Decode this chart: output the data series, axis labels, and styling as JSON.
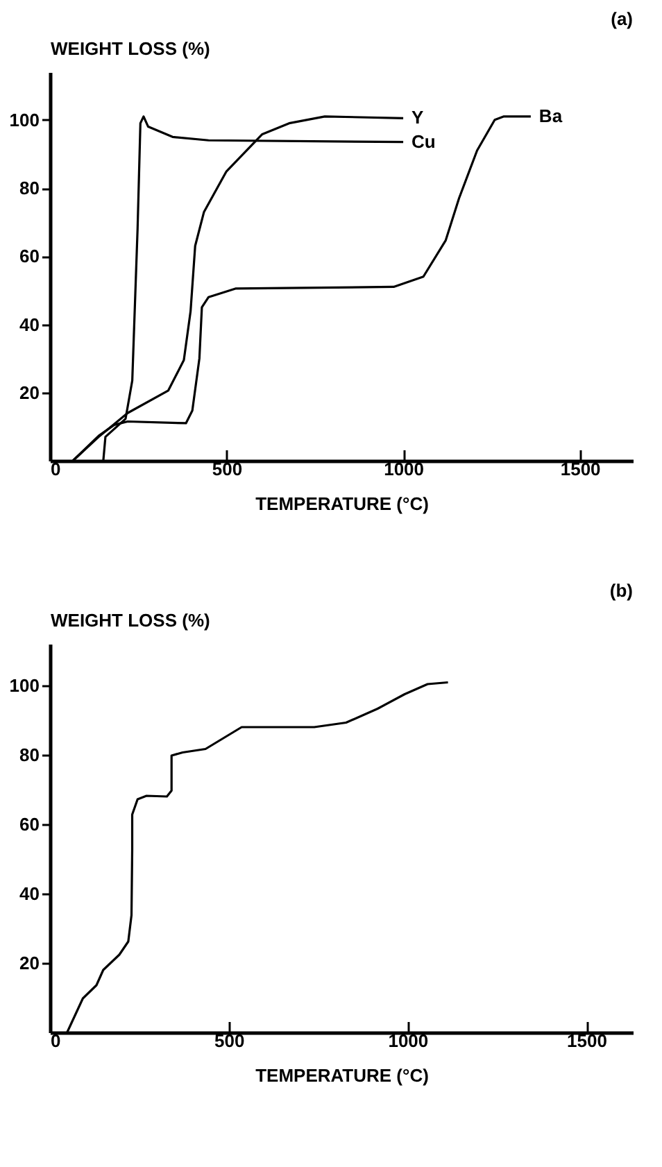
{
  "chart_data": [
    {
      "type": "line",
      "annotations": [
        "(a)"
      ],
      "xlabel": "TEMPERATURE (°C)",
      "ylabel": "WEIGHT LOSS (%)",
      "xlim": [
        0,
        1650
      ],
      "ylim": [
        0,
        114
      ],
      "xticks": [
        0,
        500,
        1000,
        1500
      ],
      "yticks": [
        20,
        40,
        60,
        80,
        100
      ],
      "series": [
        {
          "name": "Y",
          "color": "#000000",
          "x": [
            65,
            138,
            220,
            335,
            379,
            398,
            411,
            436,
            499,
            601,
            677,
            778,
            1000
          ],
          "values": [
            0,
            7,
            14,
            20.6,
            29.5,
            43.8,
            63,
            73,
            84.8,
            95.8,
            99,
            101,
            100.5
          ]
        },
        {
          "name": "Cu",
          "color": "#000000",
          "x": [
            151,
            157,
            214,
            233,
            248,
            256,
            265,
            278,
            347,
            449,
            1000
          ],
          "values": [
            0,
            7,
            12.3,
            23.5,
            68,
            99,
            101,
            98,
            95,
            94,
            93.5
          ]
        },
        {
          "name": "Ba",
          "color": "#000000",
          "x": [
            65,
            138,
            182,
            220,
            385,
            403,
            423,
            430,
            449,
            525,
            973,
            1057,
            1120,
            1158,
            1209,
            1259,
            1285,
            1361
          ],
          "values": [
            0,
            7.3,
            10.5,
            11.5,
            11,
            14.7,
            30,
            45,
            48,
            50.5,
            51,
            54,
            64.6,
            77,
            91,
            100,
            101,
            101
          ]
        }
      ]
    },
    {
      "type": "line",
      "annotations": [
        "(b)"
      ],
      "xlabel": "TEMPERATURE (°C)",
      "ylabel": "WEIGHT LOSS (%)",
      "xlim": [
        0,
        1630
      ],
      "ylim": [
        0,
        112
      ],
      "xticks": [
        0,
        500,
        1000,
        1500
      ],
      "yticks": [
        20,
        40,
        60,
        80,
        100
      ],
      "series": [
        {
          "color": "#000000",
          "x": [
            48,
            92,
            130,
            149,
            194,
            219,
            228,
            230,
            230,
            245,
            270,
            327,
            340,
            340,
            371,
            435,
            536,
            739,
            828,
            916,
            992,
            1056,
            1113
          ],
          "values": [
            0,
            9.8,
            13.6,
            18,
            22.4,
            26.2,
            33.8,
            52.7,
            62.8,
            67.2,
            68.2,
            68,
            69.7,
            79.8,
            80.7,
            81.7,
            88,
            88,
            89.3,
            93.3,
            97.5,
            100.4,
            100.9
          ]
        }
      ]
    }
  ]
}
